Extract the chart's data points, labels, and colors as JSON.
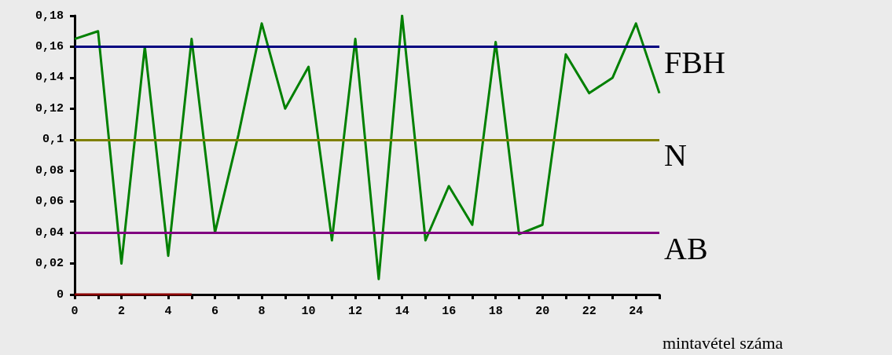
{
  "chart_data": {
    "type": "line",
    "xlabel": "mintavétel száma",
    "xlim": [
      0,
      25
    ],
    "xticks": [
      0,
      {
        "value": 1,
        "label": null
      },
      2,
      {
        "value": 3,
        "label": null
      },
      4,
      {
        "value": 5,
        "label": null
      },
      6,
      {
        "value": 7,
        "label": null
      },
      8,
      {
        "value": 9,
        "label": null
      },
      10,
      {
        "value": 11,
        "label": null
      },
      12,
      {
        "value": 13,
        "label": null
      },
      14,
      {
        "value": 15,
        "label": null
      },
      16,
      {
        "value": 17,
        "label": null
      },
      18,
      {
        "value": 19,
        "label": null
      },
      20,
      {
        "value": 21,
        "label": null
      },
      22,
      {
        "value": 23,
        "label": null
      },
      24,
      {
        "value": 25,
        "label": null
      }
    ],
    "ylim": [
      0,
      0.18
    ],
    "yticks": [
      0,
      {
        "value": 0.02,
        "label": "0,02"
      },
      {
        "value": 0.04,
        "label": "0,04"
      },
      {
        "value": 0.06,
        "label": "0,06"
      },
      {
        "value": 0.08,
        "label": "0,08"
      },
      {
        "value": 0.1,
        "label": "0,1"
      },
      {
        "value": 0.12,
        "label": "0,12"
      },
      {
        "value": 0.14,
        "label": "0,14"
      },
      {
        "value": 0.16,
        "label": "0,16"
      },
      {
        "value": 0.18,
        "label": "0,18"
      }
    ],
    "series": [
      {
        "color": "#008000",
        "x": [
          0,
          1,
          2,
          3,
          4,
          5,
          6,
          7,
          8,
          9,
          10,
          11,
          12,
          13,
          14,
          15,
          16,
          17,
          18,
          19,
          20,
          21,
          22,
          23,
          24,
          25
        ],
        "values": [
          0.165,
          0.17,
          0.02,
          0.16,
          0.025,
          0.165,
          0.04,
          0.103,
          0.175,
          0.12,
          0.147,
          0.035,
          0.165,
          0.01,
          0.18,
          0.035,
          0.07,
          0.045,
          0.163,
          0.039,
          0.045,
          0.155,
          0.13,
          0.14,
          0.175,
          0.13
        ]
      },
      {
        "color": "#8b0000",
        "x": [
          0,
          1,
          2,
          3,
          4,
          5
        ],
        "values": [
          0,
          0,
          0,
          0,
          0,
          0
        ]
      }
    ],
    "ref_lines": [
      {
        "axis": "y",
        "value": 0.16,
        "label": "FBH",
        "color": "#000080"
      },
      {
        "axis": "y",
        "value": 0.1,
        "label": "N",
        "color": "#808000"
      },
      {
        "axis": "y",
        "value": 0.04,
        "label": "AB",
        "color": "#800080"
      }
    ],
    "grid": false,
    "marker": "none",
    "line_style": "solid"
  }
}
